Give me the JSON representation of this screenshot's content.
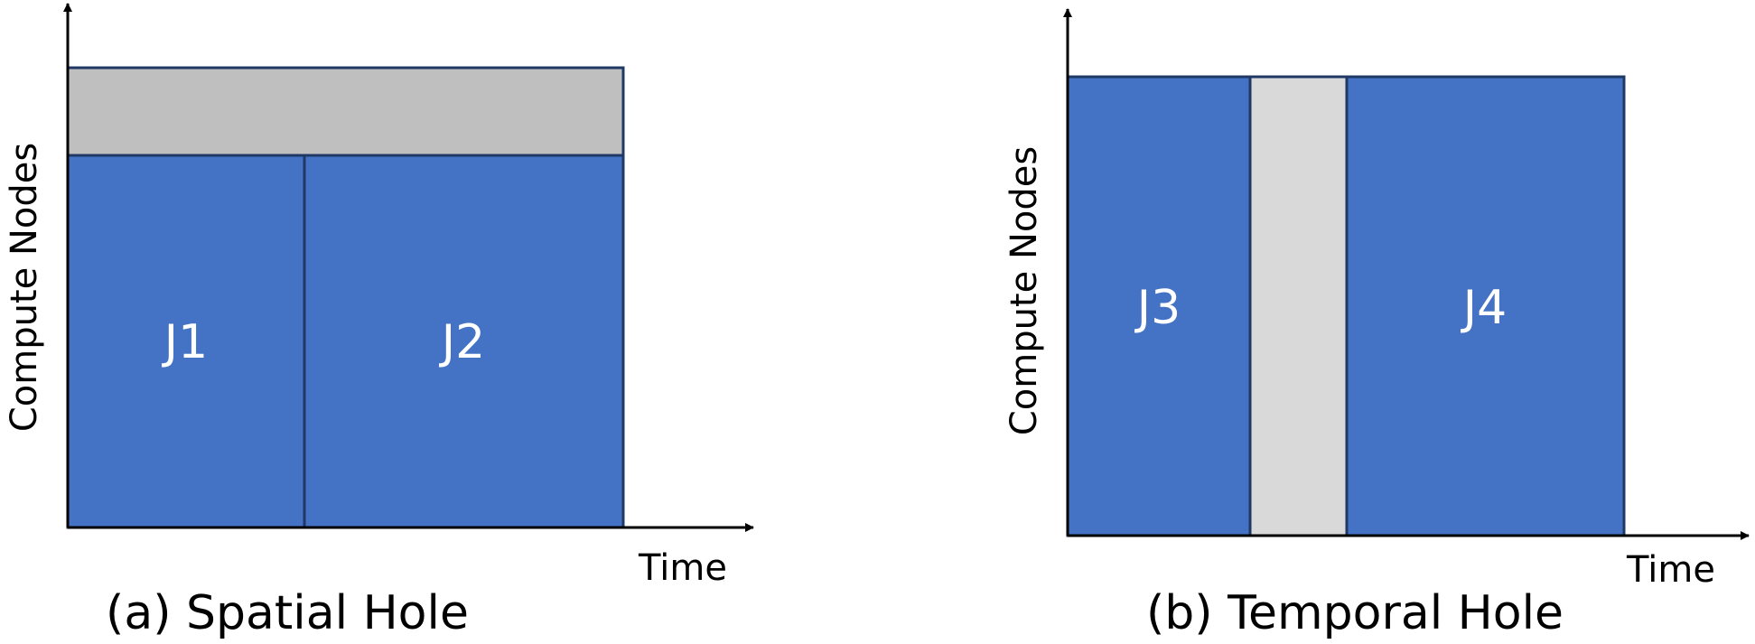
{
  "panels": [
    {
      "id": "a",
      "caption": "(a) Spatial Hole",
      "y_axis_label": "Compute Nodes",
      "x_axis_label": "Time",
      "jobs": [
        {
          "label": "J1"
        },
        {
          "label": "J2"
        }
      ]
    },
    {
      "id": "b",
      "caption": "(b) Temporal Hole",
      "y_axis_label": "Compute Nodes",
      "x_axis_label": "Time",
      "jobs": [
        {
          "label": "J3"
        },
        {
          "label": "J4"
        }
      ]
    }
  ],
  "colors": {
    "job_fill": "#4472C4",
    "job_border": "#1F3864",
    "spatial_hole_fill": "#BFBFBF",
    "temporal_hole_fill": "#D9D9D9",
    "axis": "#000000",
    "job_text": "#FFFFFF"
  }
}
